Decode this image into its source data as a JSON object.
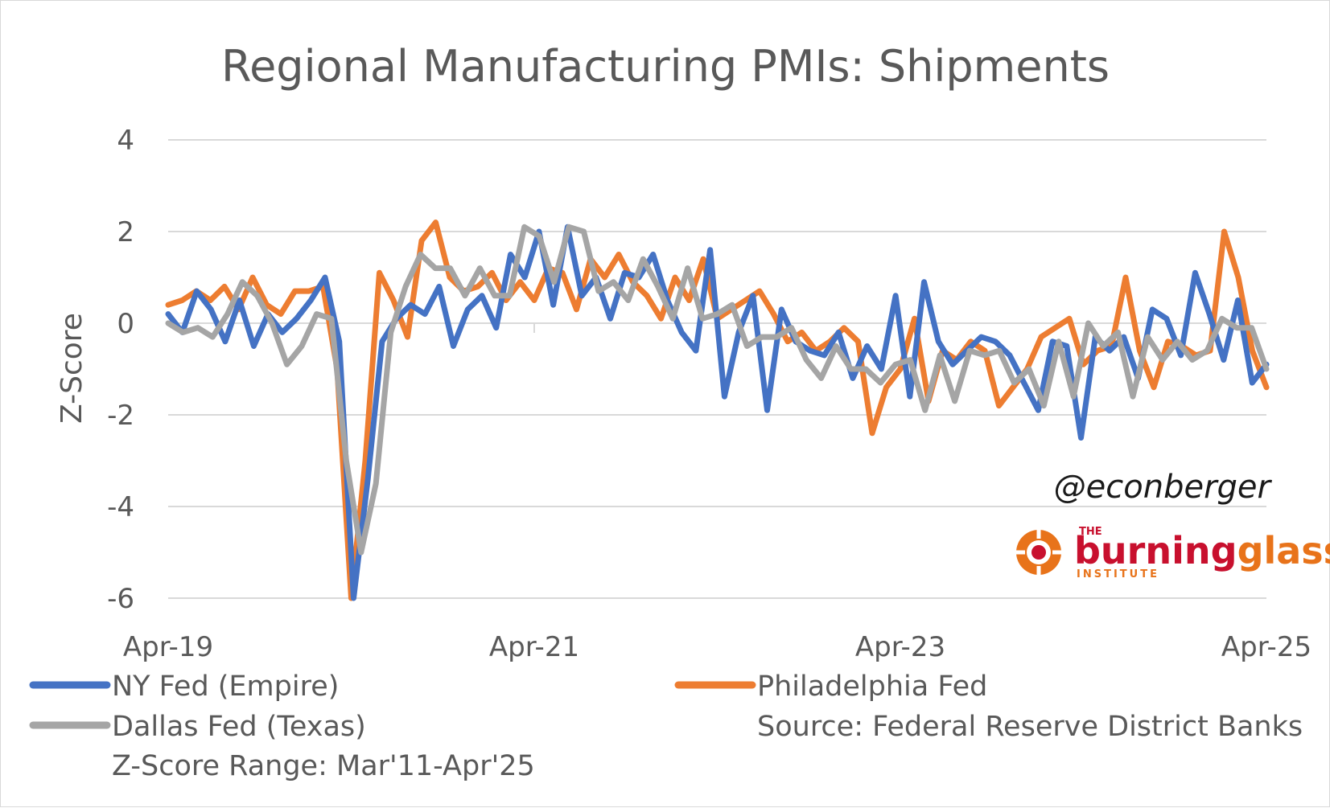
{
  "chart_data": {
    "type": "line",
    "title": "Regional Manufacturing PMIs: Shipments",
    "ylabel": "Z-Score",
    "ylim": [
      -6,
      4
    ],
    "yticks": [
      4,
      2,
      0,
      -2,
      -4,
      -6
    ],
    "xticks": [
      "Apr-19",
      "Apr-21",
      "Apr-23",
      "Apr-25"
    ],
    "x_start": "Apr-19",
    "x_end": "Apr-25",
    "grid": true,
    "legend_position": "bottom",
    "series": [
      {
        "name": "NY Fed (Empire)",
        "color": "#4472C4",
        "values": [
          0.2,
          -0.2,
          0.7,
          0.3,
          -0.4,
          0.5,
          -0.5,
          0.2,
          -0.2,
          0.1,
          0.5,
          1.0,
          -0.4,
          -6.0,
          -3.4,
          -0.4,
          0.1,
          0.4,
          0.2,
          0.8,
          -0.5,
          0.3,
          0.6,
          -0.1,
          1.5,
          1.0,
          2.0,
          0.4,
          2.1,
          0.6,
          1.0,
          0.1,
          1.1,
          1.0,
          1.5,
          0.5,
          -0.2,
          -0.6,
          1.6,
          -1.6,
          -0.2,
          0.6,
          -1.9,
          0.3,
          -0.4,
          -0.6,
          -0.7,
          -0.2,
          -1.2,
          -0.5,
          -1.0,
          0.6,
          -1.6,
          0.9,
          -0.4,
          -0.9,
          -0.6,
          -0.3,
          -0.4,
          -0.7,
          -1.3,
          -1.9,
          -0.4,
          -0.5,
          -2.5,
          -0.3,
          -0.6,
          -0.3,
          -1.2,
          0.3,
          0.1,
          -0.7,
          1.1,
          0.2,
          -0.8,
          0.5,
          -1.3,
          -0.9
        ]
      },
      {
        "name": "Philadelphia Fed",
        "color": "#ED7D31",
        "values": [
          0.4,
          0.5,
          0.7,
          0.5,
          0.8,
          0.3,
          1.0,
          0.4,
          0.2,
          0.7,
          0.7,
          0.8,
          -1.0,
          -6.0,
          -3.0,
          1.1,
          0.5,
          -0.3,
          1.8,
          2.2,
          1.0,
          0.7,
          0.8,
          1.1,
          0.5,
          0.9,
          0.5,
          1.2,
          1.1,
          0.3,
          1.4,
          1.0,
          1.5,
          0.9,
          0.6,
          0.1,
          1.0,
          0.5,
          1.4,
          0.1,
          0.3,
          0.5,
          0.7,
          0.2,
          -0.4,
          -0.2,
          -0.6,
          -0.4,
          -0.1,
          -0.4,
          -2.4,
          -1.4,
          -1.0,
          0.1,
          -1.7,
          -0.6,
          -0.8,
          -0.4,
          -0.6,
          -1.8,
          -1.4,
          -1.0,
          -0.3,
          -0.1,
          0.1,
          -0.9,
          -0.6,
          -0.5,
          1.0,
          -0.6,
          -1.4,
          -0.4,
          -0.5,
          -0.7,
          -0.6,
          2.0,
          1.0,
          -0.6,
          -1.4
        ]
      },
      {
        "name": "Dallas Fed (Texas)",
        "color": "#A5A5A5",
        "values": [
          0.0,
          -0.2,
          -0.1,
          -0.3,
          0.2,
          0.9,
          0.6,
          0.0,
          -0.9,
          -0.5,
          0.2,
          0.1,
          -3.0,
          -5.0,
          -3.5,
          -0.2,
          0.8,
          1.5,
          1.2,
          1.2,
          0.6,
          1.2,
          0.6,
          0.6,
          2.1,
          1.9,
          0.9,
          2.1,
          2.0,
          0.7,
          0.9,
          0.5,
          1.4,
          0.8,
          0.1,
          1.2,
          0.1,
          0.2,
          0.4,
          -0.5,
          -0.3,
          -0.3,
          -0.1,
          -0.8,
          -1.2,
          -0.5,
          -1.0,
          -1.0,
          -1.3,
          -0.9,
          -0.8,
          -1.9,
          -0.7,
          -1.7,
          -0.6,
          -0.7,
          -0.6,
          -1.3,
          -1.0,
          -1.8,
          -0.4,
          -1.6,
          0.0,
          -0.5,
          -0.2,
          -1.6,
          -0.3,
          -0.8,
          -0.4,
          -0.8,
          -0.6,
          0.1,
          -0.1,
          -0.1,
          -1.0
        ]
      }
    ]
  },
  "legend": {
    "items": [
      {
        "label": "NY Fed (Empire)",
        "color": "#4472C4"
      },
      {
        "label": "Philadelphia Fed",
        "color": "#ED7D31"
      },
      {
        "label": "Dallas Fed (Texas)",
        "color": "#A5A5A5"
      }
    ],
    "source": "Source: Federal Reserve District Banks",
    "range_note": "Z-Score Range: Mar'11-Apr'25"
  },
  "branding": {
    "handle": "@econberger",
    "logo_the": "THE",
    "logo_burning": "burning",
    "logo_glass": "glass",
    "logo_institute": "INSTITUTE",
    "burning_color": "#C8102E",
    "glass_color": "#E8731A"
  }
}
